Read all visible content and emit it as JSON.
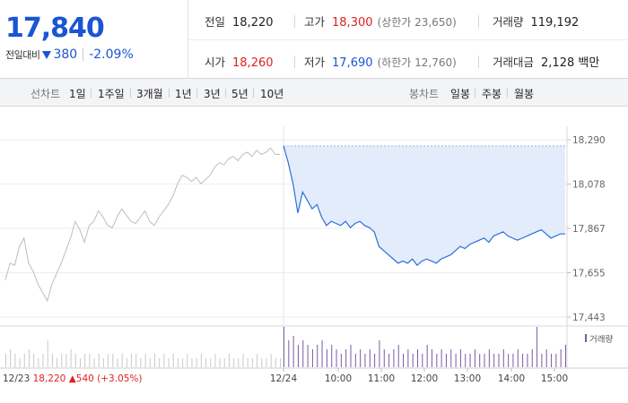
{
  "header": {
    "price": "17,840",
    "change_label": "전일대비",
    "change_value": "380",
    "change_pct": "-2.09%",
    "stats": {
      "prev_close_label": "전일",
      "prev_close": "18,220",
      "high_label": "고가",
      "high": "18,300",
      "upper_limit": "(상한가 23,650)",
      "volume_label": "거래량",
      "volume": "119,192",
      "open_label": "시가",
      "open": "18,260",
      "low_label": "저가",
      "low": "17,690",
      "lower_limit": "(하한가 12,760)",
      "amount_label": "거래대금",
      "amount": "2,128 백만"
    }
  },
  "tabs": {
    "line_label": "선차트",
    "line_periods": [
      "1일",
      "1주일",
      "3개월",
      "1년",
      "3년",
      "5년",
      "10년"
    ],
    "active": "1일",
    "candle_label": "봉차트",
    "candle_periods": [
      "일봉",
      "주봉",
      "월봉"
    ]
  },
  "chart_data": {
    "type": "line",
    "y_ticks": [
      "18,290",
      "18,078",
      "17,867",
      "17,655",
      "17,443"
    ],
    "ylim": [
      17443,
      18290
    ],
    "x_labels": [
      "12/23",
      "12/24",
      "10:00",
      "11:00",
      "12:00",
      "13:00",
      "14:00",
      "15:00"
    ],
    "prev_day_summary": {
      "date": "12/23",
      "close": "18,220",
      "change": "540",
      "change_pct": "(+3.05%)"
    },
    "volume_legend": "거래량",
    "colors": {
      "today_line": "#2a6fdb",
      "today_fill": "#e3ecfa",
      "prev_line": "#bdbdbd",
      "volume_bar": "#7b5aa6",
      "prev_volume_bar": "#c9c9c9",
      "up_red": "#e02020",
      "down_blue": "#1a55d6"
    },
    "prev_day_series": [
      17620,
      17700,
      17690,
      17780,
      17820,
      17700,
      17660,
      17600,
      17560,
      17520,
      17600,
      17650,
      17700,
      17760,
      17820,
      17900,
      17860,
      17800,
      17880,
      17900,
      17950,
      17920,
      17880,
      17870,
      17920,
      17960,
      17930,
      17900,
      17890,
      17920,
      17950,
      17900,
      17880,
      17920,
      17950,
      17980,
      18020,
      18080,
      18120,
      18110,
      18090,
      18110,
      18080,
      18100,
      18120,
      18160,
      18180,
      18170,
      18200,
      18210,
      18190,
      18220,
      18230,
      18210,
      18240,
      18220,
      18230,
      18250,
      18220,
      18220
    ],
    "today_series": [
      18260,
      18180,
      18080,
      17940,
      18040,
      18000,
      17960,
      17980,
      17920,
      17880,
      17900,
      17890,
      17880,
      17900,
      17870,
      17890,
      17900,
      17880,
      17870,
      17850,
      17780,
      17760,
      17740,
      17720,
      17700,
      17710,
      17700,
      17720,
      17690,
      17710,
      17720,
      17710,
      17700,
      17720,
      17730,
      17740,
      17760,
      17780,
      17770,
      17790,
      17800,
      17810,
      17820,
      17800,
      17830,
      17840,
      17850,
      17830,
      17820,
      17810,
      17820,
      17830,
      17840,
      17850,
      17860,
      17840,
      17820,
      17830,
      17840,
      17840
    ],
    "today_volume": [
      9,
      6,
      7,
      5,
      6,
      5,
      4,
      5,
      6,
      4,
      5,
      4,
      3,
      4,
      5,
      3,
      4,
      3,
      4,
      3,
      6,
      4,
      3,
      4,
      5,
      3,
      4,
      3,
      4,
      3,
      5,
      4,
      3,
      4,
      3,
      4,
      3,
      4,
      3,
      3,
      4,
      3,
      3,
      4,
      3,
      3,
      4,
      3,
      3,
      4,
      3,
      3,
      4,
      9,
      3,
      4,
      3,
      3,
      4,
      5
    ],
    "prev_volume": [
      3,
      4,
      3,
      2,
      3,
      4,
      3,
      2,
      3,
      6,
      3,
      2,
      3,
      3,
      4,
      3,
      2,
      3,
      3,
      2,
      3,
      2,
      3,
      3,
      2,
      3,
      2,
      3,
      3,
      2,
      3,
      2,
      3,
      2,
      3,
      2,
      3,
      2,
      2,
      3,
      2,
      2,
      3,
      2,
      2,
      3,
      2,
      2,
      3,
      2,
      2,
      3,
      2,
      2,
      3,
      2,
      2,
      3,
      2,
      2
    ]
  }
}
